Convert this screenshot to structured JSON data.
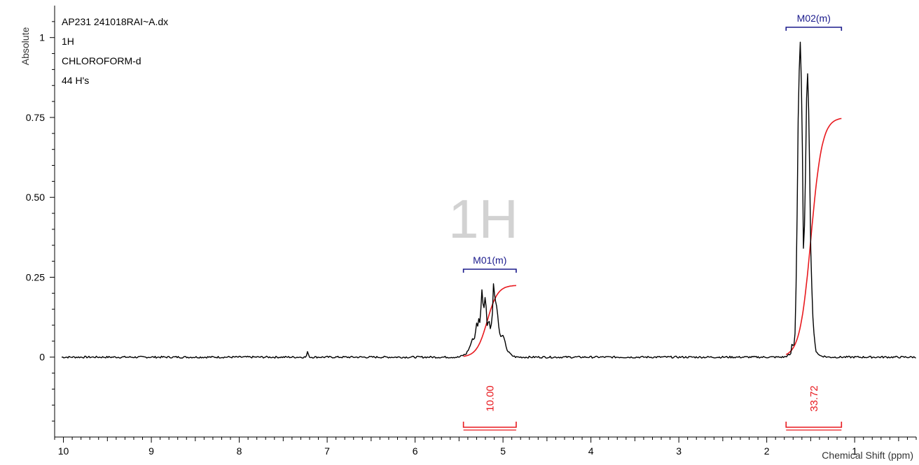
{
  "spectrum_info": [
    "AP231 241018RAI~A.dx",
    "1H",
    "CHLOROFORM-d",
    "44 H's"
  ],
  "watermark": "1H",
  "colors": {
    "spectrum": "#000000",
    "integral": "#e8191e",
    "multiplet": "#1a1a8c",
    "axis": "#000000",
    "watermark": "#d2d2d2"
  },
  "chart_data": {
    "type": "line",
    "xlabel": "Chemical Shift (ppm)",
    "ylabel": "Absolute",
    "xlim": [
      10.1,
      0.3
    ],
    "ylim": [
      -0.25,
      1.1
    ],
    "x_reversed": true,
    "x_ticks": [
      "10",
      "9",
      "8",
      "7",
      "6",
      "5",
      "4",
      "3",
      "2",
      "1"
    ],
    "y_ticks": [
      "0",
      "0.25",
      "0.50",
      "0.75",
      "1"
    ],
    "grid": false,
    "series": [
      {
        "points": [
          [
            10.02,
            0.0
          ],
          [
            7.5,
            0.0
          ],
          [
            7.24,
            0.0
          ],
          [
            7.22,
            0.018
          ],
          [
            7.2,
            0.0
          ],
          [
            5.5,
            0.0
          ],
          [
            5.42,
            0.01
          ],
          [
            5.38,
            0.03
          ],
          [
            5.35,
            0.055
          ],
          [
            5.32,
            0.06
          ],
          [
            5.3,
            0.11
          ],
          [
            5.29,
            0.09
          ],
          [
            5.27,
            0.13
          ],
          [
            5.26,
            0.1
          ],
          [
            5.24,
            0.215
          ],
          [
            5.22,
            0.14
          ],
          [
            5.2,
            0.2
          ],
          [
            5.18,
            0.1
          ],
          [
            5.16,
            0.12
          ],
          [
            5.14,
            0.08
          ],
          [
            5.12,
            0.14
          ],
          [
            5.11,
            0.235
          ],
          [
            5.09,
            0.18
          ],
          [
            5.07,
            0.16
          ],
          [
            5.05,
            0.1
          ],
          [
            5.03,
            0.06
          ],
          [
            5.01,
            0.07
          ],
          [
            4.99,
            0.06
          ],
          [
            4.97,
            0.04
          ],
          [
            4.95,
            0.02
          ],
          [
            4.9,
            0.005
          ],
          [
            4.85,
            0.0
          ],
          [
            1.8,
            0.0
          ],
          [
            1.72,
            0.01
          ],
          [
            1.71,
            0.06
          ],
          [
            1.7,
            0.03
          ],
          [
            1.68,
            0.05
          ],
          [
            1.66,
            0.3
          ],
          [
            1.64,
            0.8
          ],
          [
            1.62,
            1.0
          ],
          [
            1.6,
            0.8
          ],
          [
            1.58,
            0.28
          ],
          [
            1.56,
            0.55
          ],
          [
            1.54,
            0.94
          ],
          [
            1.52,
            0.75
          ],
          [
            1.5,
            0.35
          ],
          [
            1.48,
            0.15
          ],
          [
            1.46,
            0.06
          ],
          [
            1.44,
            0.02
          ],
          [
            1.4,
            0.005
          ],
          [
            1.3,
            0.0
          ],
          [
            0.3,
            0.0
          ]
        ]
      }
    ],
    "integrals": [
      {
        "label": "10.00",
        "from": 5.45,
        "to": 4.85,
        "height": 0.225
      },
      {
        "label": "33.72",
        "from": 1.78,
        "to": 1.15,
        "height": 0.75
      }
    ],
    "multiplets": [
      {
        "label": "M01(m)",
        "from": 5.45,
        "to": 4.85
      },
      {
        "label": "M02(m)",
        "from": 1.78,
        "to": 1.15
      }
    ]
  }
}
